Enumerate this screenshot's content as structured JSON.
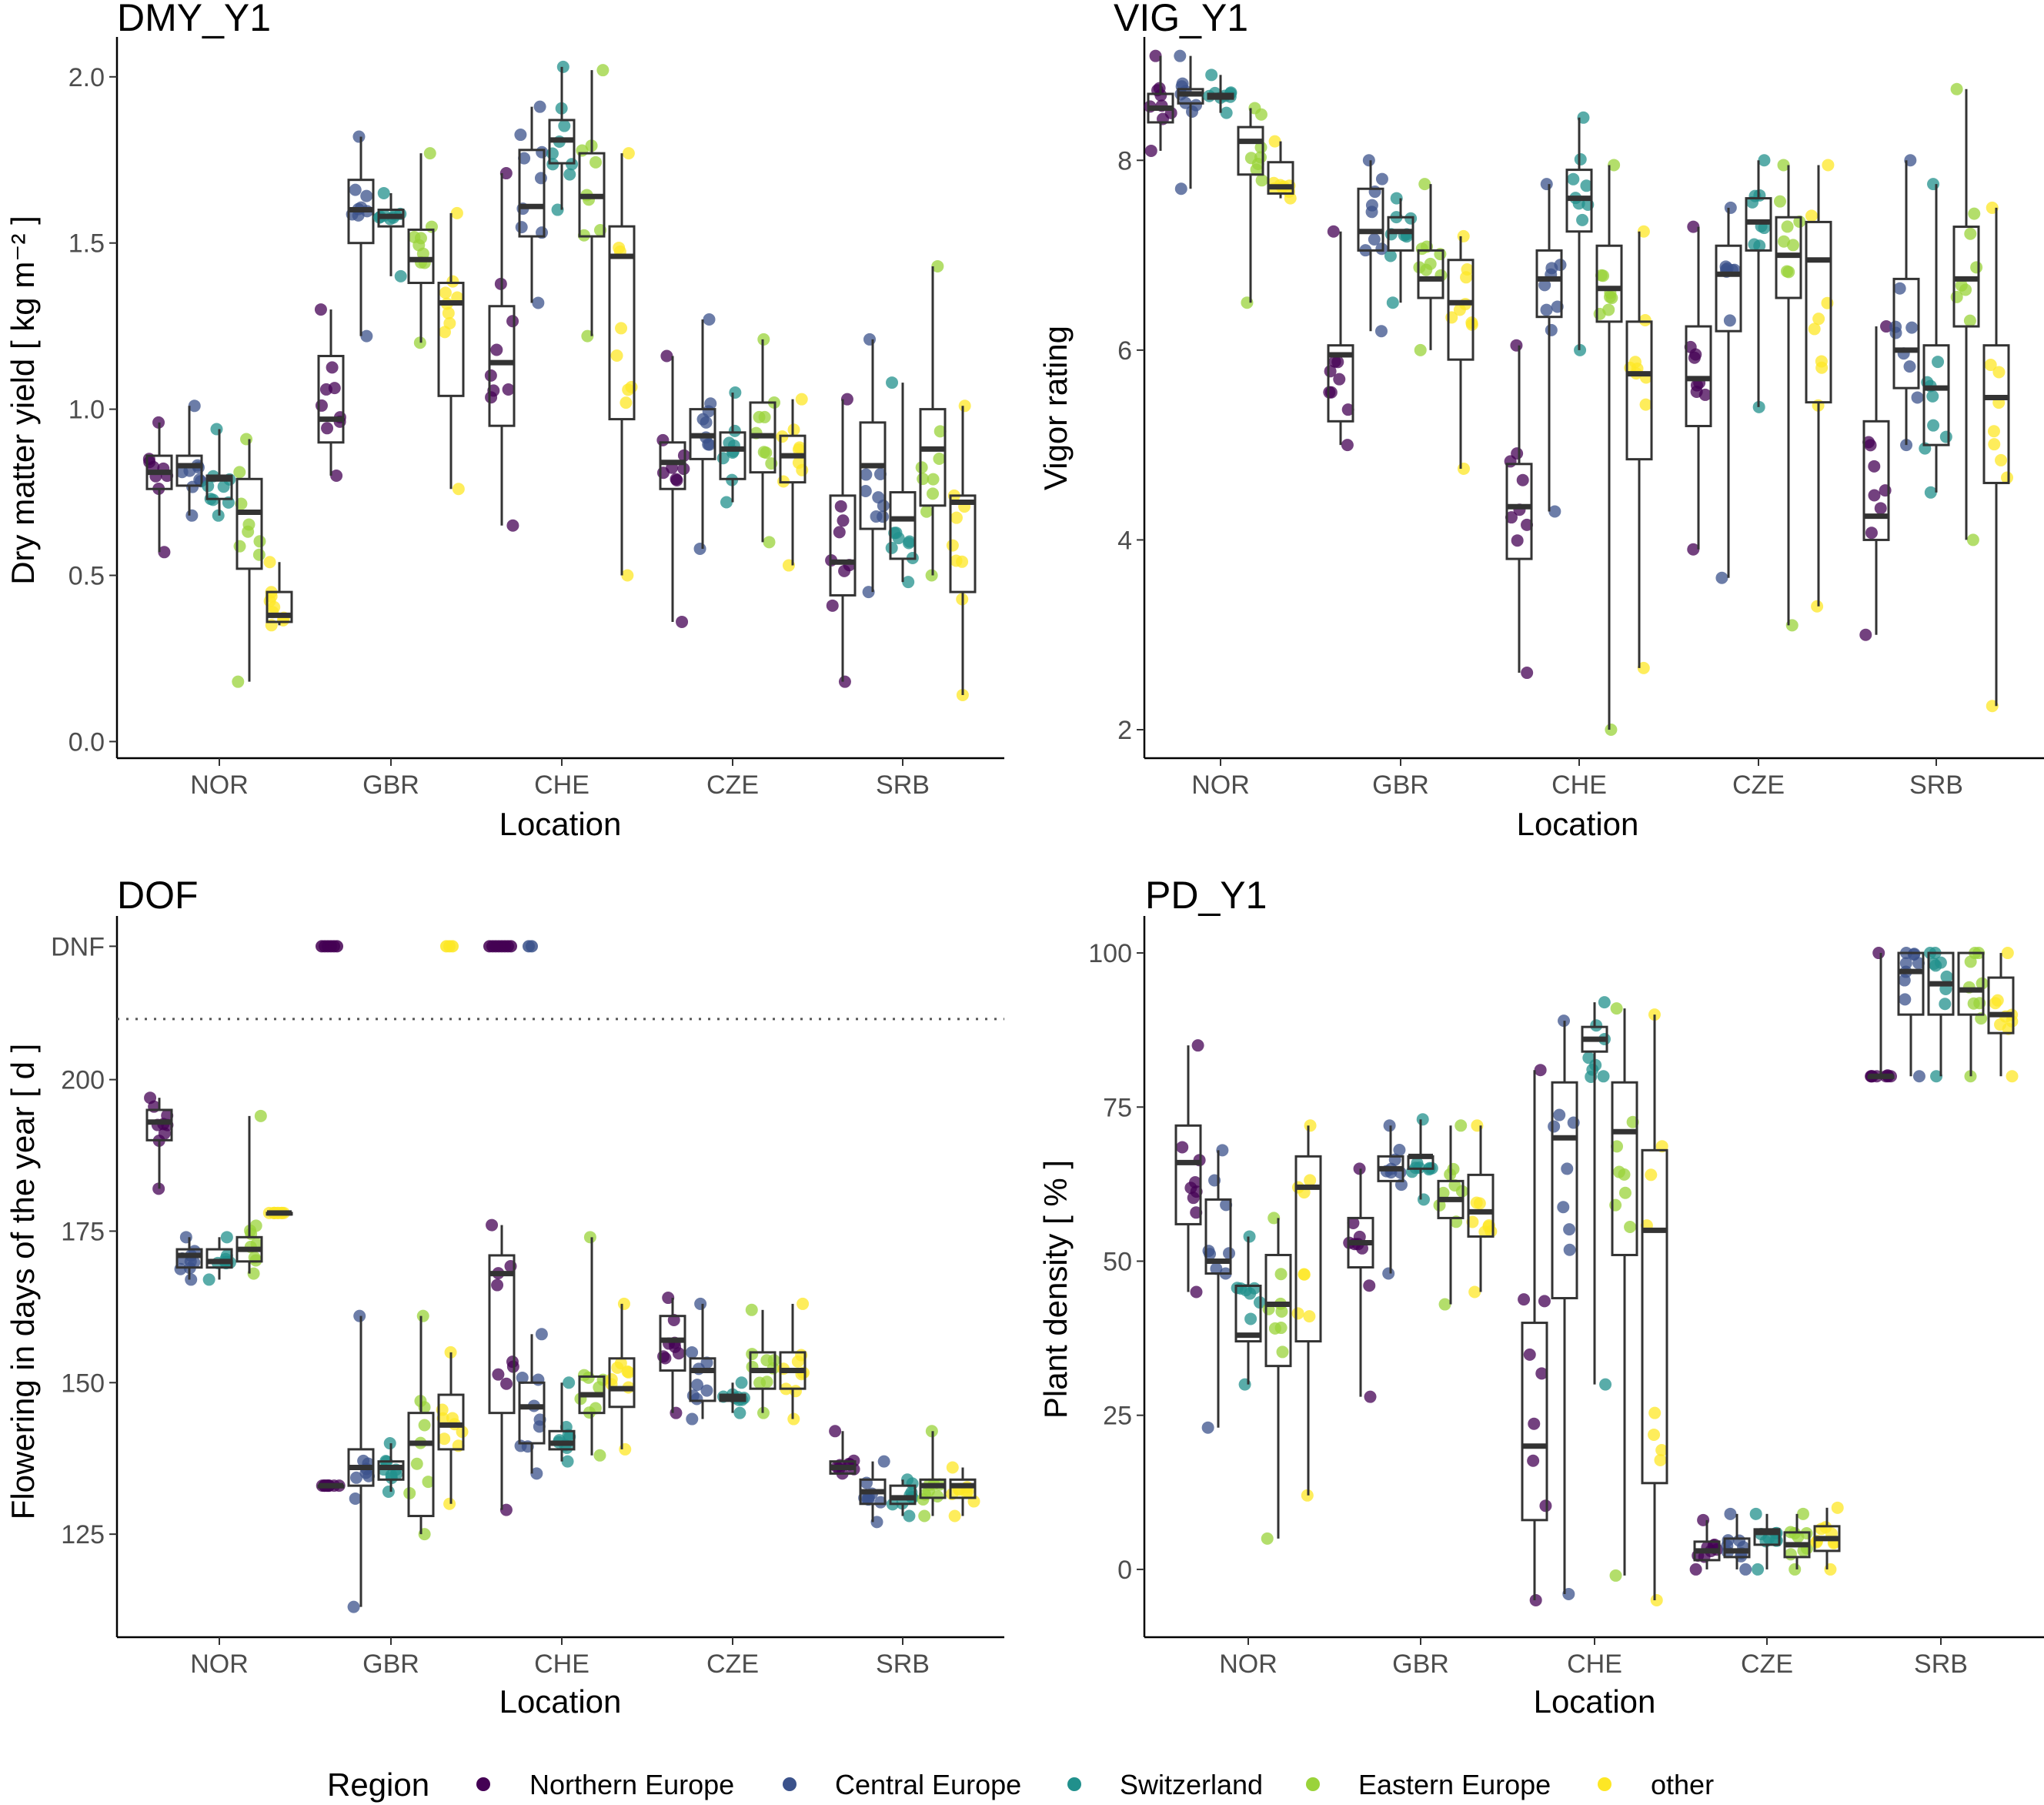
{
  "legend": {
    "title": "Region",
    "entries": [
      "Northern Europe",
      "Central Europe",
      "Switzerland",
      "Eastern Europe",
      "other"
    ],
    "colors": [
      "#440154",
      "#3b528b",
      "#21908c",
      "#9ad33a",
      "#fde725"
    ]
  },
  "chart_data": [
    {
      "type": "box",
      "title": "DMY_Y1",
      "xlabel": "Location",
      "ylabel": "Dry matter yield [ kg m⁻² ]",
      "categories": [
        "NOR",
        "GBR",
        "CHE",
        "CZE",
        "SRB"
      ],
      "ylim": [
        -0.05,
        2.12
      ],
      "yticks": [
        0.0,
        0.5,
        1.0,
        1.5,
        2.0
      ],
      "ytick_labels": [
        "0.0",
        "0.5",
        "1.0",
        "1.5",
        "2.0"
      ],
      "series": [
        {
          "name": "Northern Europe",
          "boxes": [
            [
              0.57,
              0.76,
              0.81,
              0.86,
              0.96
            ],
            [
              0.8,
              0.9,
              0.97,
              1.16,
              1.3
            ],
            [
              0.65,
              0.95,
              1.14,
              1.31,
              1.71
            ],
            [
              0.36,
              0.76,
              0.84,
              0.9,
              1.16
            ],
            [
              0.18,
              0.44,
              0.54,
              0.74,
              1.03
            ]
          ]
        },
        {
          "name": "Central Europe",
          "boxes": [
            [
              0.68,
              0.77,
              0.83,
              0.86,
              1.01
            ],
            [
              1.22,
              1.5,
              1.6,
              1.69,
              1.82
            ],
            [
              1.32,
              1.52,
              1.61,
              1.78,
              1.91
            ],
            [
              0.58,
              0.85,
              0.92,
              1.0,
              1.27
            ],
            [
              0.45,
              0.64,
              0.83,
              0.96,
              1.21
            ]
          ]
        },
        {
          "name": "Switzerland",
          "boxes": [
            [
              0.68,
              0.73,
              0.79,
              0.8,
              0.94
            ],
            [
              1.4,
              1.55,
              1.58,
              1.6,
              1.65
            ],
            [
              1.6,
              1.74,
              1.81,
              1.87,
              2.03
            ],
            [
              0.72,
              0.79,
              0.88,
              0.93,
              1.05
            ],
            [
              0.48,
              0.55,
              0.67,
              0.75,
              1.08
            ]
          ]
        },
        {
          "name": "Eastern Europe",
          "boxes": [
            [
              0.18,
              0.52,
              0.69,
              0.79,
              0.91
            ],
            [
              1.2,
              1.38,
              1.45,
              1.54,
              1.77
            ],
            [
              1.22,
              1.52,
              1.64,
              1.77,
              2.02
            ],
            [
              0.6,
              0.81,
              0.92,
              1.02,
              1.21
            ],
            [
              0.5,
              0.71,
              0.88,
              1.0,
              1.43
            ]
          ]
        },
        {
          "name": "other",
          "boxes": [
            [
              0.35,
              0.36,
              0.38,
              0.45,
              0.54
            ],
            [
              0.76,
              1.04,
              1.32,
              1.38,
              1.59
            ],
            [
              0.5,
              0.97,
              1.46,
              1.55,
              1.77
            ],
            [
              0.53,
              0.78,
              0.86,
              0.92,
              1.03
            ],
            [
              0.14,
              0.45,
              0.72,
              0.74,
              1.01
            ]
          ]
        }
      ]
    },
    {
      "type": "box",
      "title": "VIG_Y1",
      "xlabel": "Location",
      "ylabel": "Vigor rating",
      "categories": [
        "NOR",
        "GBR",
        "CHE",
        "CZE",
        "SRB"
      ],
      "ylim": [
        1.7,
        9.3
      ],
      "yticks": [
        2,
        4,
        6,
        8
      ],
      "ytick_labels": [
        "2",
        "4",
        "6",
        "8"
      ],
      "series": [
        {
          "name": "Northern Europe",
          "boxes": [
            [
              8.1,
              8.4,
              8.55,
              8.7,
              9.1
            ],
            [
              5.0,
              5.25,
              5.95,
              6.05,
              7.25
            ],
            [
              2.6,
              3.8,
              4.35,
              4.8,
              6.05
            ],
            [
              3.9,
              5.2,
              5.7,
              6.25,
              7.3
            ],
            [
              3.0,
              4.0,
              4.25,
              5.25,
              6.25
            ]
          ]
        },
        {
          "name": "Central Europe",
          "boxes": [
            [
              7.7,
              8.6,
              8.7,
              8.75,
              9.1
            ],
            [
              6.2,
              7.05,
              7.25,
              7.7,
              8.0
            ],
            [
              4.3,
              6.35,
              6.75,
              7.05,
              7.75
            ],
            [
              3.6,
              6.2,
              6.8,
              7.1,
              7.5
            ],
            [
              5.0,
              5.6,
              6.0,
              6.75,
              8.0
            ]
          ]
        },
        {
          "name": "Switzerland",
          "boxes": [
            [
              8.5,
              8.65,
              8.68,
              8.7,
              8.9
            ],
            [
              6.5,
              7.05,
              7.25,
              7.4,
              7.6
            ],
            [
              6.0,
              7.25,
              7.6,
              7.9,
              8.45
            ],
            [
              5.4,
              7.05,
              7.35,
              7.6,
              8.0
            ],
            [
              4.5,
              5.0,
              5.6,
              6.05,
              7.75
            ]
          ]
        },
        {
          "name": "Eastern Europe",
          "boxes": [
            [
              6.5,
              7.85,
              8.2,
              8.35,
              8.55
            ],
            [
              6.0,
              6.55,
              6.75,
              7.05,
              7.75
            ],
            [
              2.0,
              6.3,
              6.65,
              7.1,
              7.95
            ],
            [
              3.1,
              6.55,
              7.0,
              7.4,
              7.95
            ],
            [
              4.0,
              6.25,
              6.75,
              7.3,
              8.75
            ]
          ]
        },
        {
          "name": "other",
          "boxes": [
            [
              7.6,
              7.65,
              7.72,
              7.98,
              8.2
            ],
            [
              4.75,
              5.9,
              6.5,
              6.95,
              7.2
            ],
            [
              2.65,
              4.85,
              5.75,
              6.3,
              7.25
            ],
            [
              3.3,
              5.45,
              6.95,
              7.35,
              7.95
            ],
            [
              2.25,
              4.6,
              5.5,
              6.05,
              7.5
            ]
          ]
        }
      ]
    },
    {
      "type": "box",
      "title": "DOF",
      "xlabel": "Location",
      "ylabel": "Flowering in days of the year [ d ]",
      "categories": [
        "NOR",
        "GBR",
        "CHE",
        "CZE",
        "SRB"
      ],
      "ylim": [
        108,
        227
      ],
      "yticks": [
        125,
        150,
        175,
        200,
        222
      ],
      "ytick_labels": [
        "125",
        "150",
        "175",
        "200",
        "DNF"
      ],
      "dnf_label": "DNF",
      "dnf_threshold": 210,
      "series": [
        {
          "name": "Northern Europe",
          "boxes": [
            [
              182,
              190,
              193,
              195,
              197
            ],
            [
              133,
              133,
              133,
              133,
              133
            ],
            [
              129,
              145,
              168,
              171,
              176
            ],
            [
              145,
              152,
              157,
              161,
              164
            ],
            [
              135,
              135,
              136,
              137,
              142
            ]
          ]
        },
        {
          "name": "Central Europe",
          "boxes": [
            [
              167,
              169,
              171,
              172,
              174
            ],
            [
              113,
              133,
              136,
              139,
              161
            ],
            [
              135,
              140,
              146,
              150,
              158
            ],
            [
              144,
              147,
              152,
              154,
              163
            ],
            [
              127,
              130,
              132,
              134,
              137
            ]
          ]
        },
        {
          "name": "Switzerland",
          "boxes": [
            [
              167,
              169,
              170,
              172,
              174
            ],
            [
              132,
              134,
              136,
              137,
              140
            ],
            [
              137,
              139,
              140,
              142,
              150
            ],
            [
              145,
              147,
              147.5,
              148,
              150
            ],
            [
              128,
              130,
              131,
              133,
              134
            ]
          ]
        },
        {
          "name": "Eastern Europe",
          "boxes": [
            [
              168,
              170,
              172,
              174,
              194
            ],
            [
              125,
              128,
              140,
              145,
              161
            ],
            [
              138,
              145,
              148,
              151,
              174
            ],
            [
              145,
              149,
              152,
              155,
              162
            ],
            [
              128,
              131,
              133,
              134,
              142
            ]
          ]
        },
        {
          "name": "other",
          "boxes": [
            [
              178,
              178,
              178,
              178,
              178
            ],
            [
              130,
              139,
              143,
              148,
              155
            ],
            [
              139,
              146,
              149,
              154,
              163
            ],
            [
              144,
              149,
              152,
              155,
              163
            ],
            [
              128,
              131,
              133,
              134,
              136
            ]
          ]
        }
      ]
    },
    {
      "type": "box",
      "title": "PD_Y1",
      "xlabel": "Location",
      "ylabel": "Plant density [ % ]",
      "categories": [
        "NOR",
        "GBR",
        "CHE",
        "CZE",
        "SRB"
      ],
      "ylim": [
        -11,
        106
      ],
      "yticks": [
        0,
        25,
        50,
        75,
        100
      ],
      "ytick_labels": [
        "0",
        "25",
        "50",
        "75",
        "100"
      ],
      "series": [
        {
          "name": "Northern Europe",
          "boxes": [
            [
              45,
              56,
              66,
              72,
              85
            ],
            [
              28,
              49,
              53,
              57,
              65
            ],
            [
              -5,
              8,
              20,
              40,
              81
            ],
            [
              0,
              1.5,
              3,
              4.5,
              8
            ],
            [
              80,
              80,
              80,
              80,
              100
            ]
          ]
        },
        {
          "name": "Central Europe",
          "boxes": [
            [
              23,
              48,
              50,
              60,
              68
            ],
            [
              48,
              63,
              65,
              67,
              72
            ],
            [
              -4,
              44,
              70,
              79,
              89
            ],
            [
              0,
              2,
              3,
              5,
              9
            ],
            [
              80,
              90,
              97,
              100,
              100
            ]
          ]
        },
        {
          "name": "Switzerland",
          "boxes": [
            [
              30,
              37,
              38,
              46,
              54
            ],
            [
              60,
              65,
              67,
              67,
              73
            ],
            [
              30,
              84,
              86,
              88,
              92
            ],
            [
              0,
              4,
              6,
              6.5,
              9
            ],
            [
              80,
              90,
              95,
              100,
              100
            ]
          ]
        },
        {
          "name": "Eastern Europe",
          "boxes": [
            [
              5,
              33,
              43,
              51,
              57
            ],
            [
              43,
              57,
              60,
              63,
              72
            ],
            [
              -1,
              51,
              71,
              79,
              91
            ],
            [
              0,
              2,
              4,
              6,
              9
            ],
            [
              80,
              90,
              94,
              100,
              100
            ]
          ]
        },
        {
          "name": "other",
          "boxes": [
            [
              12,
              37,
              62,
              67,
              72
            ],
            [
              45,
              54,
              58,
              64,
              72
            ],
            [
              -5,
              14,
              55,
              68,
              90
            ],
            [
              0,
              3,
              5,
              7,
              10
            ],
            [
              80,
              87,
              90,
              96,
              100
            ]
          ]
        }
      ]
    }
  ]
}
